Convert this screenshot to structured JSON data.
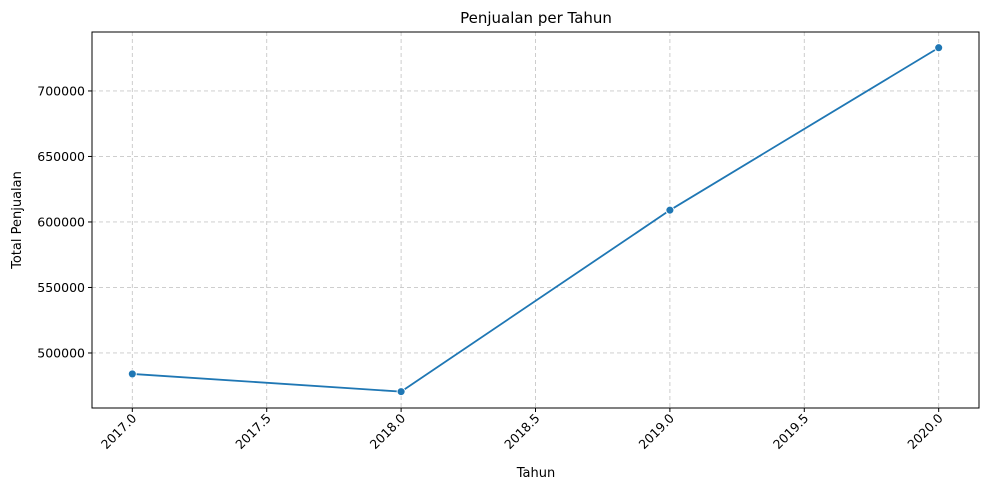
{
  "chart_data": {
    "type": "line",
    "title": "Penjualan per Tahun",
    "xlabel": "Tahun",
    "ylabel": "Total Penjualan",
    "x": [
      2017,
      2018,
      2019,
      2020
    ],
    "series": [
      {
        "values": [
          484000,
          470500,
          609000,
          733000
        ],
        "color": "#1f77b4",
        "marker": "circle"
      }
    ],
    "xlim": [
      2016.85,
      2020.15
    ],
    "ylim": [
      458000,
      745000
    ],
    "xticks": [
      2017.0,
      2017.5,
      2018.0,
      2018.5,
      2019.0,
      2019.5,
      2020.0
    ],
    "xtick_labels": [
      "2017.0",
      "2017.5",
      "2018.0",
      "2018.5",
      "2019.0",
      "2019.5",
      "2020.0"
    ],
    "xtick_rotation": 45,
    "yticks": [
      500000,
      550000,
      600000,
      650000,
      700000
    ],
    "ytick_labels": [
      "500000",
      "550000",
      "600000",
      "650000",
      "700000"
    ],
    "grid": true,
    "grid_style": "dashed"
  }
}
